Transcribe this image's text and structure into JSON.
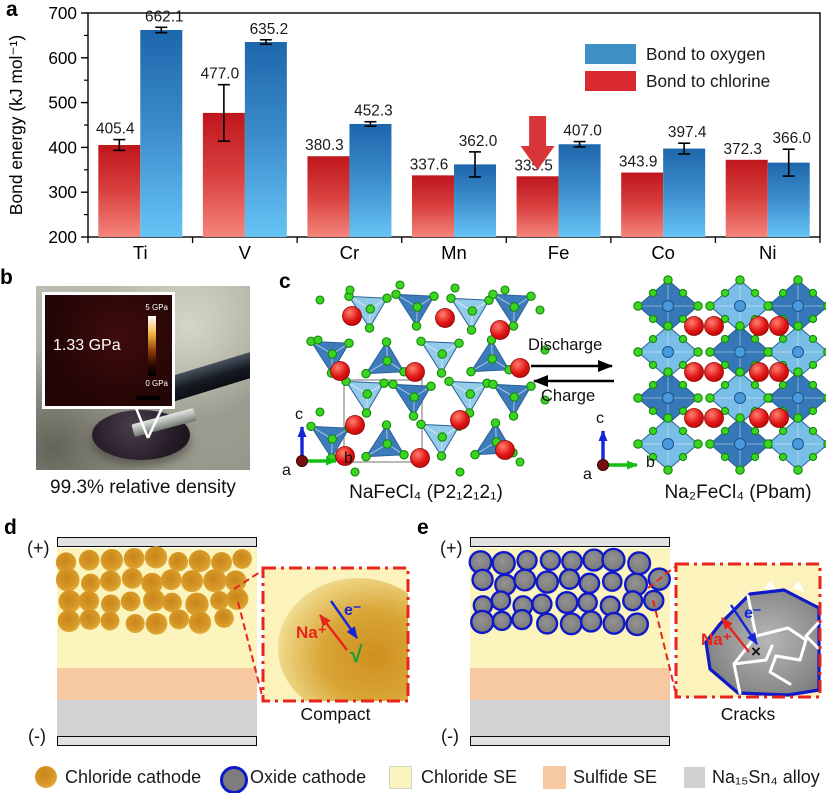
{
  "panel_labels": {
    "a": "a",
    "b": "b",
    "c": "c",
    "d": "d",
    "e": "e"
  },
  "panel_b": {
    "modulus": "1.33 GPa",
    "scale_max": "5 GPa",
    "scale_min": "0 GPa",
    "caption": "99.3% relative density"
  },
  "panel_c": {
    "left_formula": "NaFeCl₄ (P2₁2₁2₁)",
    "right_formula": "Na₂FeCl₄ (Pbam)",
    "discharge": "Discharge",
    "charge": "Charge",
    "axes_left": {
      "a": "a",
      "b": "b",
      "c": "c"
    },
    "axes_right": {
      "a": "a",
      "b": "b",
      "c": "c"
    }
  },
  "panel_d": {
    "positive": "(+)",
    "negative": "(-)",
    "na_label": "Na⁺",
    "e_label": "e⁻",
    "check": "√",
    "caption": "Compact"
  },
  "panel_e": {
    "positive": "(+)",
    "negative": "(-)",
    "na_label": "Na⁺",
    "e_label": "e⁻",
    "cross": "×",
    "caption": "Cracks"
  },
  "bottom_legend": [
    {
      "label": "Chloride cathode",
      "swatch": "chloride-cathode-circle",
      "color": "#d89a28"
    },
    {
      "label": "Oxide cathode",
      "swatch": "oxide-cathode-circle",
      "color": "#7d7d7d"
    },
    {
      "label": "Chloride SE",
      "swatch": "chloride-se-square",
      "color": "#fbf4bd"
    },
    {
      "label": "Sulfide SE",
      "swatch": "sulfide-se-square",
      "color": "#f6c9a2"
    },
    {
      "label": "Na₁₅Sn₄ alloy",
      "swatch": "alloy-square",
      "color": "#d0d0d0"
    }
  ],
  "chart_data": {
    "type": "bar",
    "title": "",
    "xlabel": "",
    "ylabel": "Bond energy (kJ mol⁻¹)",
    "ylim": [
      200,
      700
    ],
    "yticks": [
      200,
      300,
      400,
      500,
      600,
      700
    ],
    "grid": false,
    "legend_position": "top-right-inside",
    "categories": [
      "Ti",
      "V",
      "Cr",
      "Mn",
      "Fe",
      "Co",
      "Ni"
    ],
    "series": [
      {
        "name": "Bond to chlorine",
        "color": "#da2a30",
        "color_top": "#bf161d",
        "color_bottom": "#f5857c",
        "values": [
          405.4,
          477.0,
          380.3,
          337.6,
          335.5,
          343.9,
          372.3
        ],
        "errors": [
          12,
          63,
          0,
          0,
          0,
          0,
          0
        ]
      },
      {
        "name": "Bond to oxygen",
        "color": "#3e8fc6",
        "color_top": "#1d66ab",
        "color_bottom": "#66c4f5",
        "values": [
          662.1,
          635.2,
          452.3,
          362.0,
          407.0,
          397.4,
          366.0
        ],
        "errors": [
          6,
          5,
          5,
          28,
          6,
          12,
          30
        ]
      }
    ],
    "legend": [
      {
        "label": "Bond to oxygen",
        "color": "#3e8fc6"
      },
      {
        "label": "Bond to chlorine",
        "color": "#da2a30"
      }
    ],
    "annotation": {
      "type": "arrow-down",
      "category": "Fe",
      "color": "#d8353a"
    }
  }
}
